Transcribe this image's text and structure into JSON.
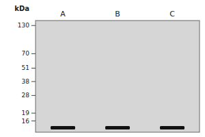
{
  "chart_data": {
    "type": "gel",
    "y_label": "kDa",
    "categories": [
      "A",
      "B",
      "C"
    ],
    "values": [
      13.8,
      13.8,
      13.8
    ],
    "color": "#111111",
    "log": "y",
    "ylim": [
      12.5,
      145
    ],
    "yticks": [
      130,
      70,
      51,
      38,
      28,
      19,
      16
    ]
  }
}
